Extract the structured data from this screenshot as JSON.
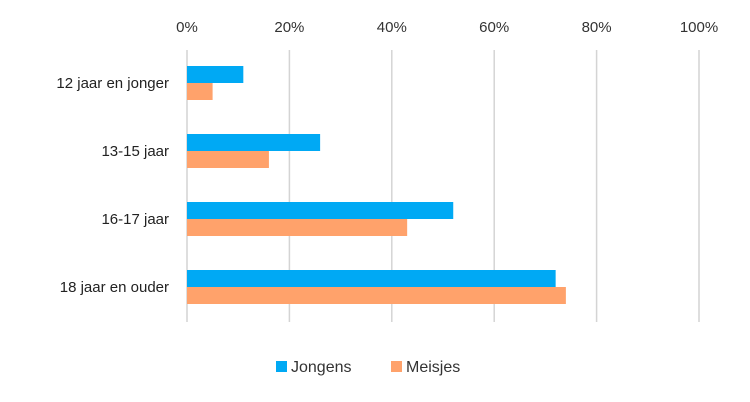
{
  "chart_data": {
    "type": "bar",
    "orientation": "horizontal",
    "categories": [
      "12 jaar en jonger",
      "13-15 jaar",
      "16-17 jaar",
      "18 jaar en ouder"
    ],
    "series": [
      {
        "name": "Jongens",
        "color": "#00A9F4",
        "values": [
          11,
          26,
          52,
          72
        ]
      },
      {
        "name": "Meisjes",
        "color": "#FFA26B",
        "values": [
          5,
          16,
          43,
          74
        ]
      }
    ],
    "xlim": [
      0,
      100
    ],
    "ticks": [
      "0%",
      "20%",
      "40%",
      "60%",
      "80%",
      "100%"
    ],
    "tick_values": [
      0,
      20,
      40,
      60,
      80,
      100
    ],
    "grid": true,
    "legend": "bottom",
    "title": "",
    "xlabel": "",
    "ylabel": ""
  }
}
